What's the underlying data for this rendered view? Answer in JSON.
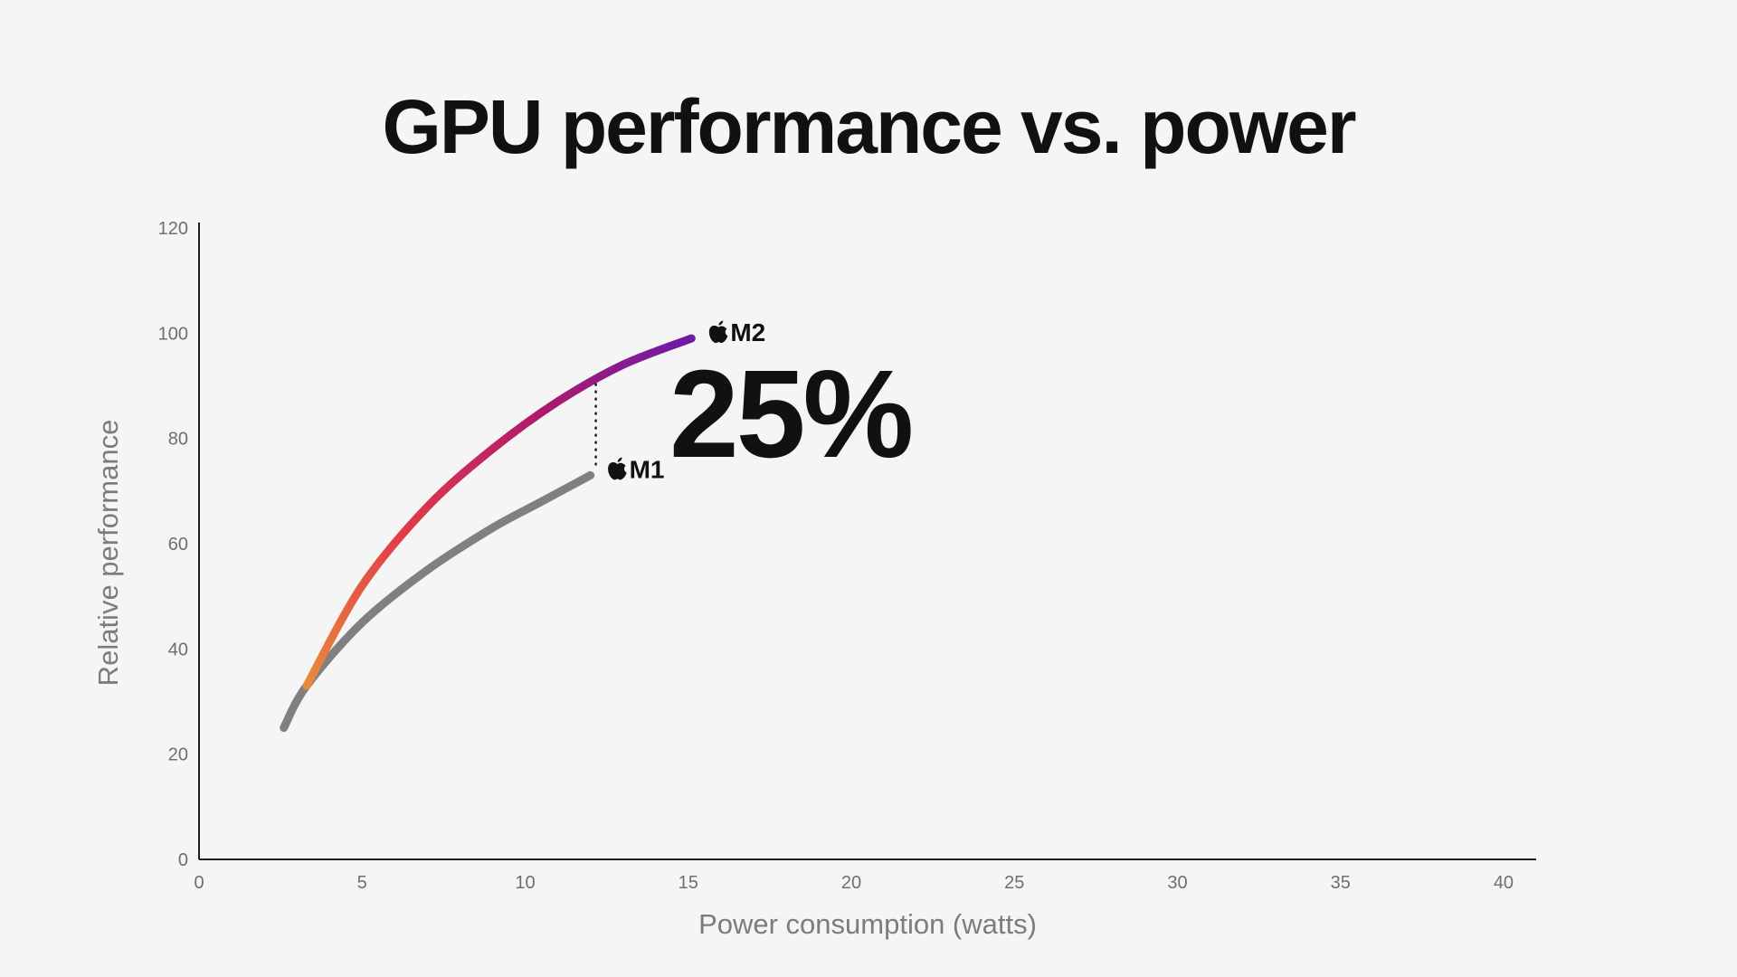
{
  "chart_data": {
    "type": "line",
    "title": "GPU performance vs. power",
    "xlabel": "Power consumption (watts)",
    "ylabel": "Relative performance",
    "xlim": [
      0,
      41
    ],
    "ylim": [
      0,
      120
    ],
    "x_ticks": [
      0,
      5,
      10,
      15,
      20,
      25,
      30,
      35,
      40
    ],
    "y_ticks": [
      0,
      20,
      40,
      60,
      80,
      100,
      120
    ],
    "grid": false,
    "legend": "none",
    "series": [
      {
        "name": "M1",
        "color": "#808083",
        "x": [
          2.6,
          3.3,
          5,
          7,
          9,
          10.5,
          12
        ],
        "y": [
          25,
          33,
          45,
          55,
          63,
          68,
          73
        ]
      },
      {
        "name": "M2",
        "gradient": [
          "#e88a3c",
          "#e23b48",
          "#b21a6a",
          "#6f1aa8"
        ],
        "x": [
          3.3,
          5,
          7,
          9,
          11,
          13,
          15.1
        ],
        "y": [
          33,
          52,
          67,
          78,
          87,
          94,
          99
        ]
      }
    ],
    "annotation": {
      "text": "25%",
      "x": 12,
      "y_from": 73,
      "y_to": 91
    },
    "logo_icon": "apple-logo-icon"
  }
}
